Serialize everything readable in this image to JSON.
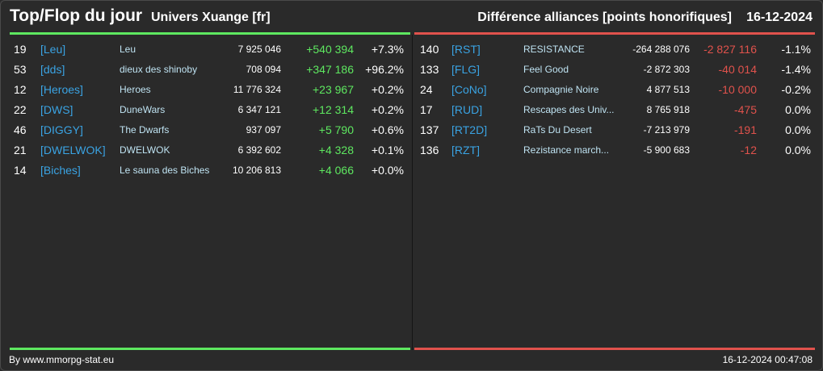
{
  "header": {
    "title": "Top/Flop du jour",
    "universe": "Univers Xuange [fr]",
    "category": "Différence alliances [points honorifiques]",
    "date": "16-12-2024"
  },
  "colors": {
    "accent_up": "#5ee860",
    "accent_down": "#e0524c",
    "tag": "#3aa3e3",
    "name": "#bfe3f2",
    "background": "#2a2a2a"
  },
  "top": [
    {
      "rank": "19",
      "tag": "[Leu]",
      "name": "Leu",
      "points": "7 925 046",
      "diff": "+540 394",
      "pct": "+7.3%"
    },
    {
      "rank": "53",
      "tag": "[dds]",
      "name": "dieux des shinoby",
      "points": "708 094",
      "diff": "+347 186",
      "pct": "+96.2%"
    },
    {
      "rank": "12",
      "tag": "[Heroes]",
      "name": "Heroes",
      "points": "11 776 324",
      "diff": "+23 967",
      "pct": "+0.2%"
    },
    {
      "rank": "22",
      "tag": "[DWS]",
      "name": "DuneWars",
      "points": "6 347 121",
      "diff": "+12 314",
      "pct": "+0.2%"
    },
    {
      "rank": "46",
      "tag": "[DIGGY]",
      "name": "The Dwarfs",
      "points": "937 097",
      "diff": "+5 790",
      "pct": "+0.6%"
    },
    {
      "rank": "21",
      "tag": "[DWELWOK]",
      "name": "DWELWOK",
      "points": "6 392 602",
      "diff": "+4 328",
      "pct": "+0.1%"
    },
    {
      "rank": "14",
      "tag": "[Biches]",
      "name": "Le sauna des Biches",
      "points": "10 206 813",
      "diff": "+4 066",
      "pct": "+0.0%"
    }
  ],
  "flop": [
    {
      "rank": "140",
      "tag": "[RST]",
      "name": "RESISTANCE",
      "points": "-264 288 076",
      "diff": "-2 827 116",
      "pct": "-1.1%"
    },
    {
      "rank": "133",
      "tag": "[FLG]",
      "name": "Feel Good",
      "points": "-2 872 303",
      "diff": "-40 014",
      "pct": "-1.4%"
    },
    {
      "rank": "24",
      "tag": "[CoNo]",
      "name": "Compagnie Noire",
      "points": "4 877 513",
      "diff": "-10 000",
      "pct": "-0.2%"
    },
    {
      "rank": "17",
      "tag": "[RUD]",
      "name": "Rescapes des Univ...",
      "points": "8 765 918",
      "diff": "-475",
      "pct": "0.0%"
    },
    {
      "rank": "137",
      "tag": "[RT2D]",
      "name": "RaTs Du Desert",
      "points": "-7 213 979",
      "diff": "-191",
      "pct": "0.0%"
    },
    {
      "rank": "136",
      "tag": "[RZT]",
      "name": "Rezistance march...",
      "points": "-5 900 683",
      "diff": "-12",
      "pct": "0.0%"
    }
  ],
  "footer": {
    "credit": "By www.mmorpg-stat.eu",
    "timestamp": "16-12-2024 00:47:08"
  }
}
